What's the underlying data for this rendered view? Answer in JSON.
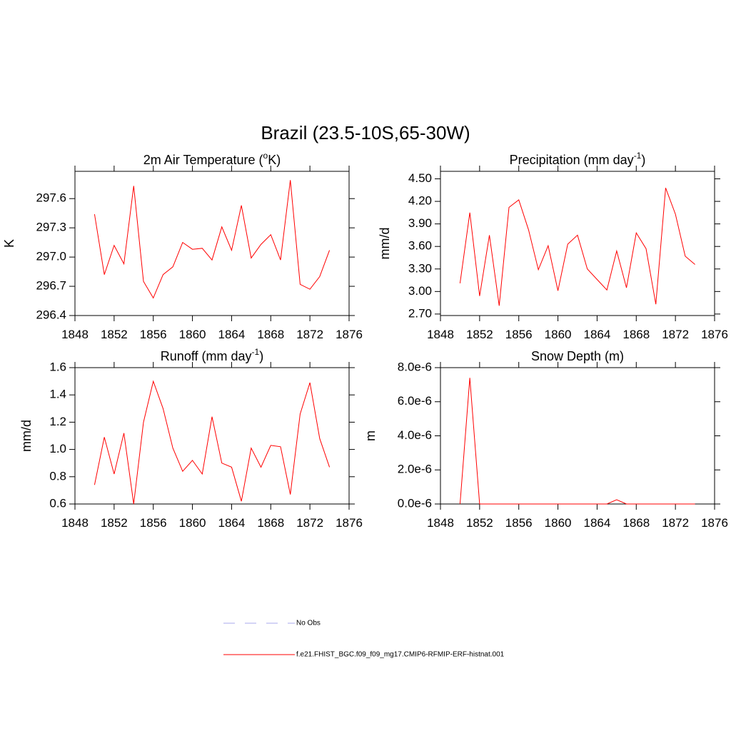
{
  "title": "Brazil (23.5-10S,65-30W)",
  "legend": [
    {
      "name": "No Obs",
      "color": "#aaaaee",
      "dash": true
    },
    {
      "name": "f.e21.FHIST_BGC.f09_f09_mg17.CMIP6-RFMIP-ERF-histnat.001",
      "color": "#ff0000",
      "dash": false
    }
  ],
  "chart_data": [
    {
      "type": "line",
      "title": [
        "2m Air Temperature (",
        "o",
        "K)"
      ],
      "y_label": "K",
      "x": [
        1850,
        1851,
        1852,
        1853,
        1854,
        1855,
        1856,
        1857,
        1858,
        1859,
        1860,
        1861,
        1862,
        1863,
        1864,
        1865,
        1866,
        1867,
        1868,
        1869,
        1870,
        1871,
        1872,
        1873,
        1874
      ],
      "series": [
        {
          "color": "#ff0000",
          "values": [
            297.44,
            296.82,
            297.12,
            296.93,
            297.73,
            296.75,
            296.58,
            296.82,
            296.9,
            297.15,
            297.08,
            297.09,
            296.97,
            297.31,
            297.07,
            297.53,
            296.99,
            297.13,
            297.23,
            296.97,
            297.79,
            296.72,
            296.67,
            296.8,
            297.07
          ]
        }
      ],
      "xlim": [
        1848,
        1876
      ],
      "xticks": [
        1848,
        1852,
        1856,
        1860,
        1864,
        1868,
        1872,
        1876
      ],
      "ylim": [
        296.4,
        297.88
      ],
      "yticks": [
        296.4,
        296.7,
        {
          "value": 297.0,
          "label": "297.0"
        },
        297.3,
        297.6
      ]
    },
    {
      "type": "line",
      "title": [
        "Precipitation (mm day",
        "-1",
        ")"
      ],
      "y_label": "mm/d",
      "x": [
        1850,
        1851,
        1852,
        1853,
        1854,
        1855,
        1856,
        1857,
        1858,
        1859,
        1860,
        1861,
        1862,
        1863,
        1864,
        1865,
        1866,
        1867,
        1868,
        1869,
        1870,
        1871,
        1872,
        1873,
        1874
      ],
      "series": [
        {
          "color": "#ff0000",
          "values": [
            3.11,
            4.05,
            2.94,
            3.75,
            2.81,
            4.12,
            4.22,
            3.82,
            3.29,
            3.61,
            3.01,
            3.63,
            3.75,
            3.3,
            3.16,
            3.02,
            3.54,
            3.05,
            3.78,
            3.57,
            2.83,
            4.38,
            4.03,
            3.47,
            3.36
          ]
        }
      ],
      "xlim": [
        1848,
        1876
      ],
      "xticks": [
        1848,
        1852,
        1856,
        1860,
        1864,
        1868,
        1872,
        1876
      ],
      "ylim": [
        2.68,
        4.6
      ],
      "yticks": [
        {
          "value": 2.7,
          "label": "2.70"
        },
        {
          "value": 3.0,
          "label": "3.00"
        },
        {
          "value": 3.3,
          "label": "3.30"
        },
        {
          "value": 3.6,
          "label": "3.60"
        },
        {
          "value": 3.9,
          "label": "3.90"
        },
        {
          "value": 4.2,
          "label": "4.20"
        },
        {
          "value": 4.5,
          "label": "4.50"
        }
      ]
    },
    {
      "type": "line",
      "title": [
        "Runoff (mm day",
        "-1",
        ")"
      ],
      "y_label": "mm/d",
      "x": [
        1850,
        1851,
        1852,
        1853,
        1854,
        1855,
        1856,
        1857,
        1858,
        1859,
        1860,
        1861,
        1862,
        1863,
        1864,
        1865,
        1866,
        1867,
        1868,
        1869,
        1870,
        1871,
        1872,
        1873,
        1874
      ],
      "series": [
        {
          "color": "#ff0000",
          "values": [
            0.74,
            1.09,
            0.82,
            1.12,
            0.6,
            1.2,
            1.5,
            1.3,
            1.01,
            0.84,
            0.92,
            0.82,
            1.24,
            0.9,
            0.87,
            0.62,
            1.01,
            0.87,
            1.03,
            1.02,
            0.67,
            1.26,
            1.49,
            1.08,
            0.87
          ]
        }
      ],
      "xlim": [
        1848,
        1876
      ],
      "xticks": [
        1848,
        1852,
        1856,
        1860,
        1864,
        1868,
        1872,
        1876
      ],
      "ylim": [
        0.6,
        1.6
      ],
      "yticks": [
        0.6,
        0.8,
        {
          "value": 1.0,
          "label": "1.0"
        },
        1.2,
        1.4,
        1.6
      ]
    },
    {
      "type": "line",
      "title": [
        "Snow Depth (m)"
      ],
      "y_label": "m",
      "x": [
        1850,
        1851,
        1852,
        1853,
        1854,
        1855,
        1856,
        1857,
        1858,
        1859,
        1860,
        1861,
        1862,
        1863,
        1864,
        1865,
        1866,
        1867,
        1868,
        1869,
        1870,
        1871,
        1872,
        1873,
        1874
      ],
      "series": [
        {
          "color": "#ff0000",
          "values": [
            0,
            7.4e-06,
            0,
            0,
            0,
            0,
            0,
            0,
            0,
            0,
            0,
            0,
            0,
            0,
            0,
            0,
            2.5e-07,
            0,
            0,
            0,
            0,
            0,
            0,
            0,
            0
          ]
        }
      ],
      "xlim": [
        1848,
        1876
      ],
      "xticks": [
        1848,
        1852,
        1856,
        1860,
        1864,
        1868,
        1872,
        1876
      ],
      "ylim": [
        0,
        8e-06
      ],
      "yticks": [
        {
          "value": 0,
          "label": "0.0e-6"
        },
        {
          "value": 2e-06,
          "label": "2.0e-6"
        },
        {
          "value": 4e-06,
          "label": "4.0e-6"
        },
        {
          "value": 6e-06,
          "label": "6.0e-6"
        },
        {
          "value": 8e-06,
          "label": "8.0e-6"
        }
      ]
    }
  ]
}
